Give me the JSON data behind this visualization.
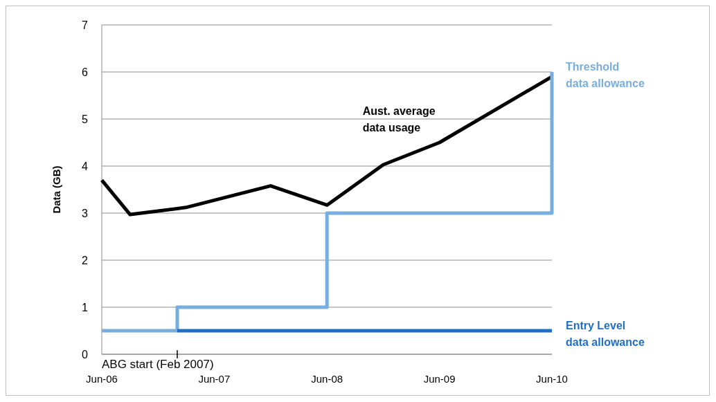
{
  "chart_data": {
    "type": "line",
    "ylabel": "Data (GB)",
    "xlim": [
      "2006-06",
      "2010-06"
    ],
    "xticks": [
      {
        "value": "2006-06",
        "label": "Jun-06"
      },
      {
        "value": "2007-06",
        "label": "Jun-07"
      },
      {
        "value": "2008-06",
        "label": "Jun-08"
      },
      {
        "value": "2009-06",
        "label": "Jun-09"
      },
      {
        "value": "2010-06",
        "label": "Jun-10"
      }
    ],
    "ylim": [
      0,
      7
    ],
    "yticks": [
      0,
      1,
      2,
      3,
      4,
      5,
      6,
      7
    ],
    "grid": "y",
    "series": [
      {
        "name": "Aust. average data usage",
        "type": "line",
        "color": "#000000",
        "x": [
          "2006-06",
          "2006-09",
          "2007-03",
          "2007-12",
          "2008-06",
          "2008-12",
          "2009-06",
          "2010-06"
        ],
        "values": [
          3.7,
          2.97,
          3.12,
          3.58,
          3.17,
          4.03,
          4.5,
          5.9
        ]
      },
      {
        "name": "Threshold data allowance",
        "type": "step",
        "color": "#77aee0",
        "x": [
          "2006-06",
          "2007-02",
          "2008-06",
          "2010-06"
        ],
        "values": [
          0.5,
          1,
          3,
          6
        ]
      },
      {
        "name": "Entry Level data allowance",
        "type": "line",
        "color": "#1f6fc8",
        "x": [
          "2007-02",
          "2010-06"
        ],
        "values": [
          0.5,
          0.5
        ]
      }
    ],
    "ref_lines": [
      {
        "axis": "x",
        "value": "2007-02",
        "label": "ABG start (Feb 2007)"
      }
    ]
  }
}
